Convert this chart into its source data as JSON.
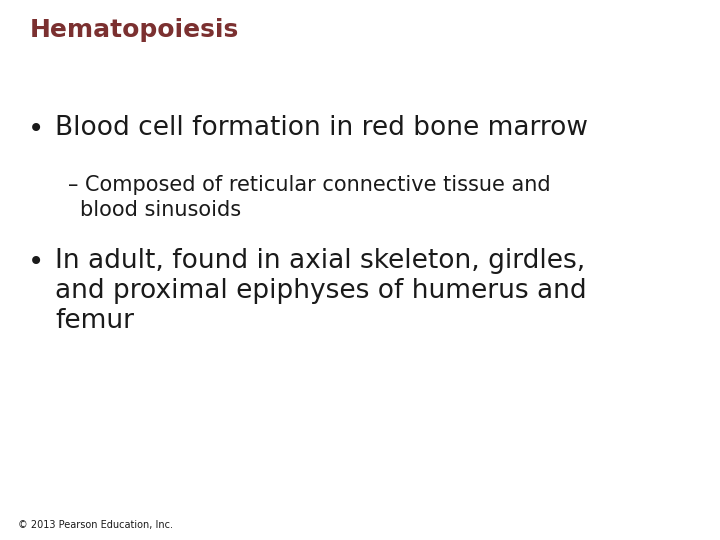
{
  "title": "Hematopoiesis",
  "title_color": "#7B3030",
  "title_fontsize": 18,
  "title_bold": true,
  "background_color": "#FFFFFF",
  "bullet1": "Blood cell formation in red bone marrow",
  "sub_bullet1_line1": "– Composed of reticular connective tissue and",
  "sub_bullet1_line2": "   blood sinusoids",
  "bullet2_line1": "In adult, found in axial skeleton, girdles,",
  "bullet2_line2": "and proximal epiphyses of humerus and",
  "bullet2_line3": "femur",
  "bullet_fontsize": 19,
  "sub_bullet_fontsize": 15,
  "footer": "© 2013 Pearson Education, Inc.",
  "footer_fontsize": 7,
  "text_color": "#1A1A1A"
}
